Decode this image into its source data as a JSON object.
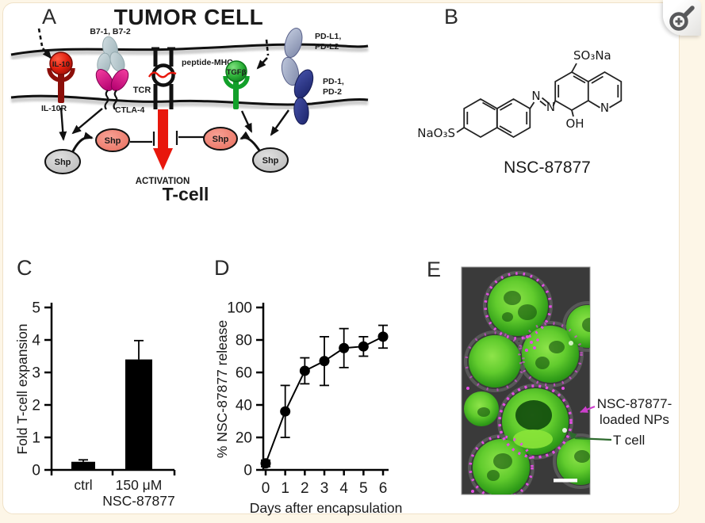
{
  "icons": {
    "zoom_button": "magnifier-plus-icon"
  },
  "colors": {
    "background_cream": "#fdf6e7",
    "il10_red": "#c41a0e",
    "ctla4_magenta": "#d6187e",
    "b7_gray_blue": "#b7c9ce",
    "tgfb_green": "#12a02a",
    "pd_ligand_light_blue": "#aab4cf",
    "pd_receptor_dark_blue": "#2c3590",
    "shp_pink": "#ee7e72",
    "shp_gray": "#c6c6c6",
    "activation_arrow_red": "#e8170c",
    "np_arrow_magenta": "#cc3fcc",
    "tcell_arrow_green": "#2d6a2d"
  },
  "panels": {
    "a": {
      "label": "A",
      "title": "TUMOR CELL",
      "b7": "B7-1, B7-2",
      "peptide_mhc": "peptide-MHC",
      "pdl_line1": "PD-L1,",
      "pdl_line2": "PD-L2",
      "il10": "IL-10",
      "il10r": "IL-10R",
      "ctla4": "CTLA-4",
      "tcr": "TCR",
      "tgfb": "TGFβ",
      "pd_line1": "PD-1,",
      "pd_line2": "PD-2",
      "shp": "Shp",
      "activation": "ACTIVATION",
      "tcell": "T-cell"
    },
    "b": {
      "label": "B",
      "so3na": "SO₃Na",
      "nao3s": "NaO₃S",
      "azo_n1": "N",
      "azo_n2": "N",
      "hydroxyl": "OH",
      "ring_n": "N",
      "caption": "NSC-87877"
    },
    "c": {
      "label": "C"
    },
    "d": {
      "label": "D"
    },
    "e": {
      "label": "E",
      "np_label_line1": "NSC-87877-",
      "np_label_line2": "loaded NPs",
      "tcell_label": "T cell"
    }
  },
  "chart_data": [
    {
      "type": "bar",
      "panel": "C",
      "categories": [
        [
          "ctrl"
        ],
        [
          "150 μM",
          "NSC-87877"
        ]
      ],
      "values": [
        0.25,
        3.4
      ],
      "errors": [
        0.06,
        0.58
      ],
      "ylabel": "Fold T-cell expansion",
      "ylim": [
        0,
        5
      ],
      "yticks": [
        0,
        1,
        2,
        3,
        4,
        5
      ],
      "grid": false,
      "bar_color": "#000000"
    },
    {
      "type": "line",
      "panel": "D",
      "x": [
        0,
        1,
        2,
        3,
        4,
        5,
        6
      ],
      "y": [
        4,
        36,
        61,
        67,
        75,
        76,
        82
      ],
      "errors": [
        2,
        16,
        8,
        15,
        12,
        6,
        7
      ],
      "xlabel": "Days after encapsulation",
      "ylabel": "% NSC-87877 release",
      "xlim": [
        0,
        6
      ],
      "ylim": [
        0,
        100
      ],
      "xticks": [
        0,
        1,
        2,
        3,
        4,
        5,
        6
      ],
      "yticks": [
        0,
        20,
        40,
        60,
        80,
        100
      ],
      "grid": false,
      "marker": "circle",
      "color": "#000000"
    }
  ]
}
